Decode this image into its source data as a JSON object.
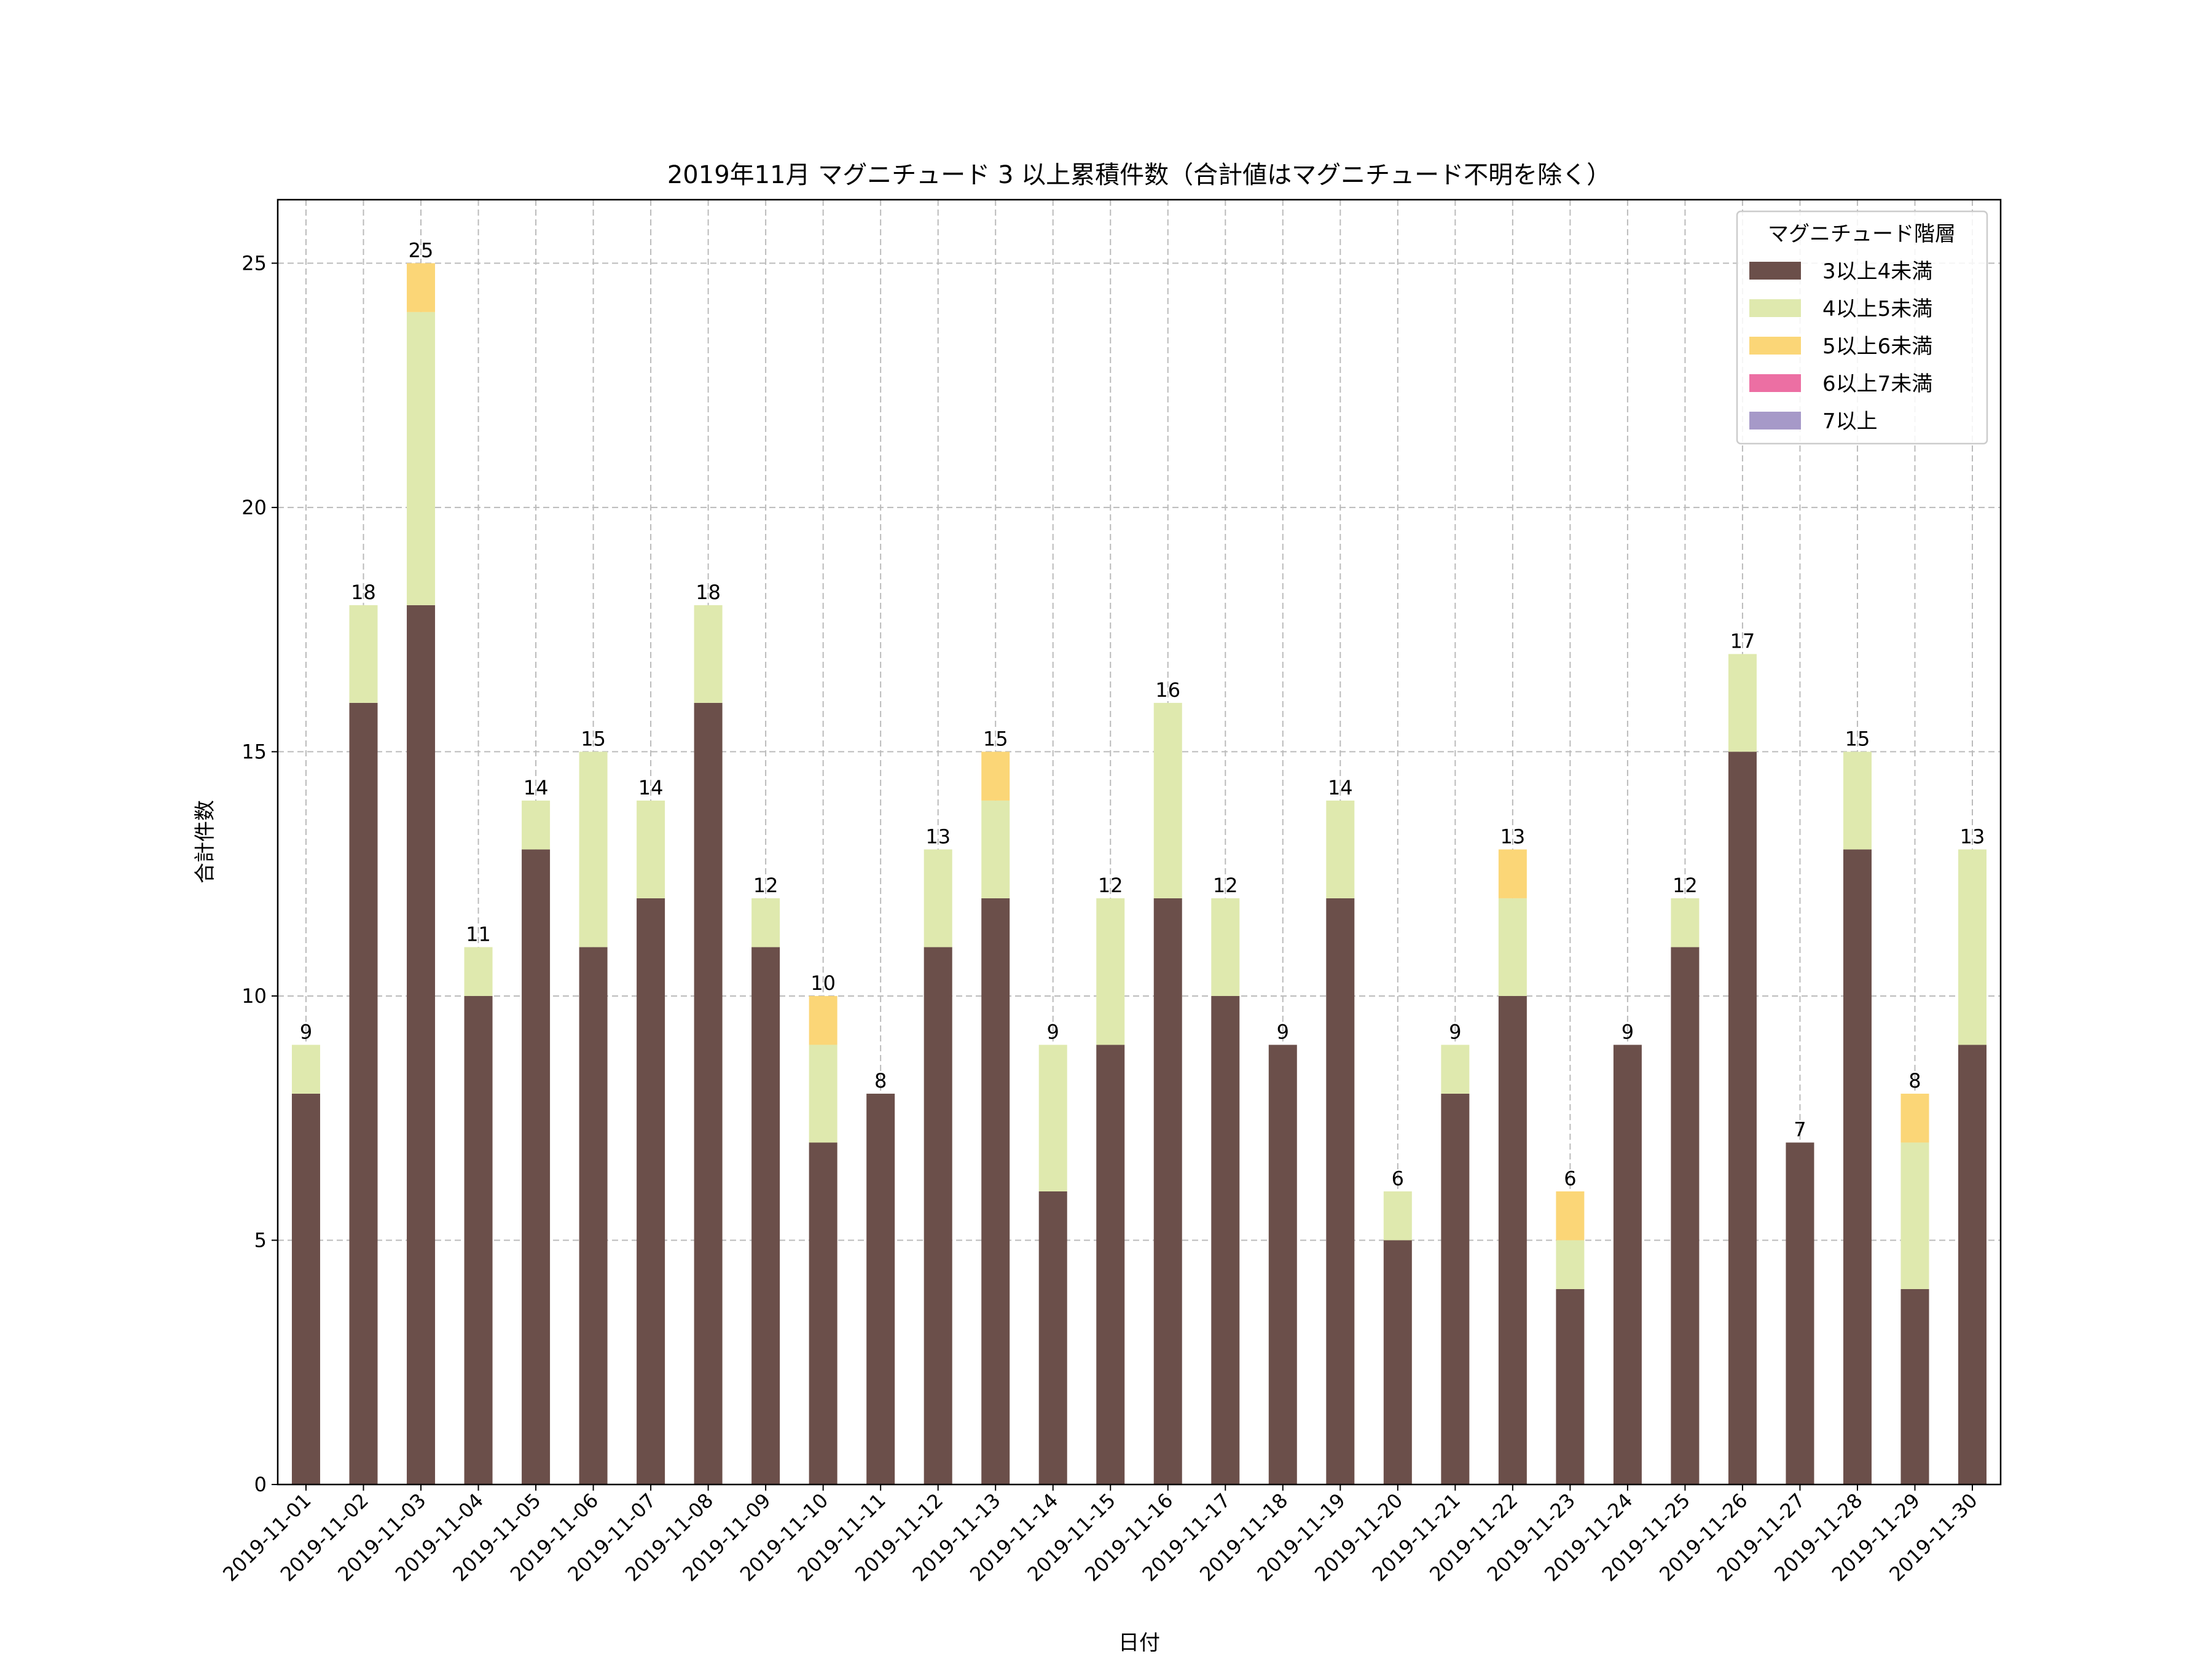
{
  "chart_data": {
    "type": "bar",
    "stacked": true,
    "title": "2019年11月 マグニチュード 3 以上累積件数（合計値はマグニチュード不明を除く）",
    "xlabel": "日付",
    "ylabel": "合計件数",
    "ylim": [
      0,
      26.3
    ],
    "yticks": [
      0,
      5,
      10,
      15,
      20,
      25
    ],
    "grid": true,
    "legend": {
      "title": "マグニチュード階層",
      "placement": "top-right"
    },
    "categories": [
      "2019-11-01",
      "2019-11-02",
      "2019-11-03",
      "2019-11-04",
      "2019-11-05",
      "2019-11-06",
      "2019-11-07",
      "2019-11-08",
      "2019-11-09",
      "2019-11-10",
      "2019-11-11",
      "2019-11-12",
      "2019-11-13",
      "2019-11-14",
      "2019-11-15",
      "2019-11-16",
      "2019-11-17",
      "2019-11-18",
      "2019-11-19",
      "2019-11-20",
      "2019-11-21",
      "2019-11-22",
      "2019-11-23",
      "2019-11-24",
      "2019-11-25",
      "2019-11-26",
      "2019-11-27",
      "2019-11-28",
      "2019-11-29",
      "2019-11-30"
    ],
    "series": [
      {
        "name": "3以上4未満",
        "color": "#6b4f4a",
        "values": [
          8,
          16,
          18,
          10,
          13,
          11,
          12,
          16,
          11,
          7,
          8,
          11,
          12,
          6,
          9,
          12,
          10,
          9,
          12,
          5,
          8,
          10,
          4,
          9,
          11,
          15,
          7,
          13,
          4,
          9
        ]
      },
      {
        "name": "4以上5未満",
        "color": "#dfe9ae",
        "values": [
          1,
          2,
          6,
          1,
          1,
          4,
          2,
          2,
          1,
          2,
          0,
          2,
          2,
          3,
          3,
          4,
          2,
          0,
          2,
          1,
          1,
          2,
          1,
          0,
          1,
          2,
          0,
          2,
          3,
          4
        ]
      },
      {
        "name": "5以上6未満",
        "color": "#fbd677",
        "values": [
          0,
          0,
          1,
          0,
          0,
          0,
          0,
          0,
          0,
          1,
          0,
          0,
          1,
          0,
          0,
          0,
          0,
          0,
          0,
          0,
          0,
          1,
          1,
          0,
          0,
          0,
          0,
          0,
          1,
          0
        ]
      },
      {
        "name": "6以上7未満",
        "color": "#ec6fa3",
        "values": [
          0,
          0,
          0,
          0,
          0,
          0,
          0,
          0,
          0,
          0,
          0,
          0,
          0,
          0,
          0,
          0,
          0,
          0,
          0,
          0,
          0,
          0,
          0,
          0,
          0,
          0,
          0,
          0,
          0,
          0
        ]
      },
      {
        "name": "7以上",
        "color": "#a699c8",
        "values": [
          0,
          0,
          0,
          0,
          0,
          0,
          0,
          0,
          0,
          0,
          0,
          0,
          0,
          0,
          0,
          0,
          0,
          0,
          0,
          0,
          0,
          0,
          0,
          0,
          0,
          0,
          0,
          0,
          0,
          0
        ]
      }
    ],
    "totals": [
      9,
      18,
      25,
      11,
      14,
      15,
      14,
      18,
      12,
      10,
      8,
      13,
      15,
      9,
      12,
      16,
      12,
      9,
      14,
      6,
      9,
      13,
      6,
      9,
      12,
      17,
      7,
      15,
      8,
      13
    ]
  }
}
